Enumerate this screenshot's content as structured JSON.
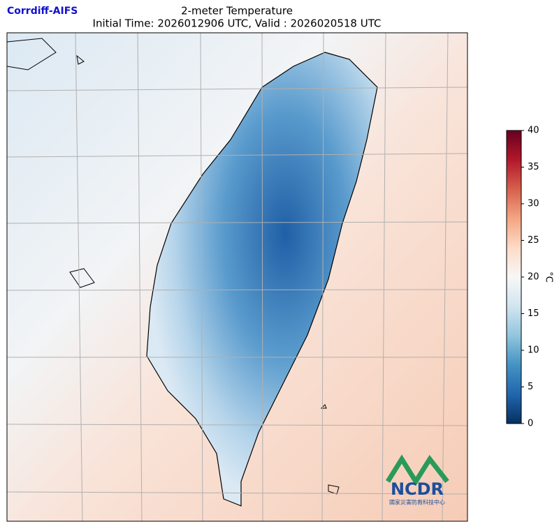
{
  "header": {
    "brand": "Corrdiff-AIFS",
    "title": "2-meter Temperature",
    "subtitle": "Initial Time: 2026012906 UTC, Valid : 2026020518 UTC"
  },
  "colorbar": {
    "label": "°C",
    "lim": [
      0,
      40
    ],
    "ticks": [
      0,
      5,
      10,
      15,
      20,
      25,
      30,
      35,
      40
    ]
  },
  "logo": {
    "name": "NCDR",
    "org": "國家災害防救科技中心"
  }
}
